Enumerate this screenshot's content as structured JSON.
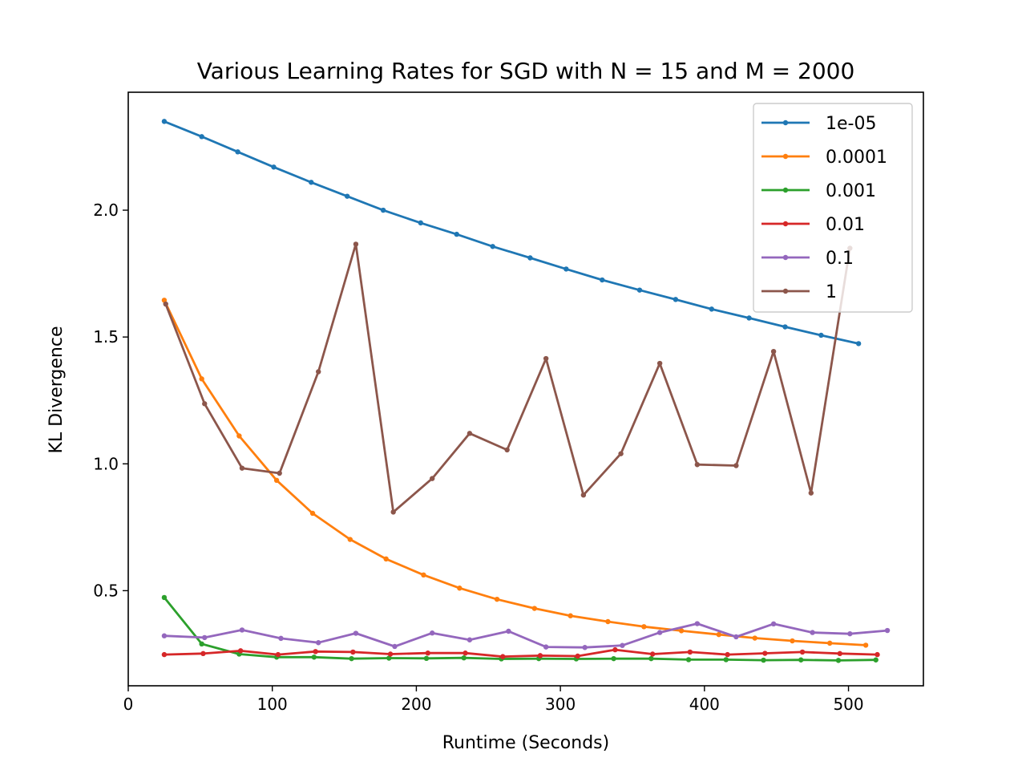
{
  "chart_data": {
    "type": "line",
    "title": "Various Learning Rates for SGD with N = 15 and M = 2000",
    "xlabel": "Runtime (Seconds)",
    "ylabel": "KL Divergence",
    "xlim": [
      0,
      552
    ],
    "ylim": [
      0.125,
      2.465
    ],
    "xticks": [
      0,
      100,
      200,
      300,
      400,
      500
    ],
    "yticks": [
      0.5,
      1.0,
      1.5,
      2.0
    ],
    "xtick_labels": [
      "0",
      "100",
      "200",
      "300",
      "400",
      "500"
    ],
    "ytick_labels": [
      "0.5",
      "1.0",
      "1.5",
      "2.0"
    ],
    "legend_position": "top-right",
    "grid": false,
    "series": [
      {
        "name": "1e-05",
        "color": "#1f77b4",
        "x": [
          25,
          51,
          76,
          101,
          127,
          152,
          177,
          203,
          228,
          253,
          279,
          304,
          329,
          355,
          380,
          405,
          431,
          456,
          481,
          507
        ],
        "y": [
          2.35,
          2.29,
          2.23,
          2.17,
          2.11,
          2.055,
          2.0,
          1.95,
          1.905,
          1.857,
          1.812,
          1.768,
          1.725,
          1.685,
          1.648,
          1.61,
          1.575,
          1.54,
          1.507,
          1.474
        ]
      },
      {
        "name": "0.0001",
        "color": "#ff7f0e",
        "x": [
          25,
          51,
          77,
          103,
          128,
          154,
          179,
          205,
          230,
          256,
          282,
          307,
          333,
          358,
          384,
          410,
          435,
          461,
          487,
          512
        ],
        "y": [
          1.645,
          1.335,
          1.11,
          0.935,
          0.805,
          0.702,
          0.625,
          0.562,
          0.51,
          0.466,
          0.43,
          0.401,
          0.378,
          0.358,
          0.342,
          0.327,
          0.313,
          0.302,
          0.293,
          0.285
        ]
      },
      {
        "name": "0.001",
        "color": "#2ca02c",
        "x": [
          25,
          51,
          77,
          103,
          129,
          155,
          181,
          207,
          233,
          259,
          285,
          311,
          337,
          363,
          389,
          415,
          441,
          467,
          493,
          519
        ],
        "y": [
          0.473,
          0.29,
          0.25,
          0.238,
          0.238,
          0.232,
          0.234,
          0.233,
          0.235,
          0.231,
          0.232,
          0.231,
          0.232,
          0.232,
          0.228,
          0.228,
          0.226,
          0.227,
          0.225,
          0.227
        ]
      },
      {
        "name": "0.01",
        "color": "#d62728",
        "x": [
          25,
          52,
          78,
          104,
          130,
          156,
          182,
          208,
          234,
          260,
          286,
          312,
          338,
          364,
          390,
          416,
          442,
          468,
          494,
          520
        ],
        "y": [
          0.248,
          0.252,
          0.263,
          0.248,
          0.26,
          0.258,
          0.25,
          0.254,
          0.254,
          0.24,
          0.244,
          0.242,
          0.267,
          0.25,
          0.258,
          0.248,
          0.253,
          0.258,
          0.252,
          0.248
        ]
      },
      {
        "name": "0.1",
        "color": "#9467bd",
        "x": [
          25,
          53,
          79,
          106,
          132,
          158,
          185,
          211,
          237,
          264,
          290,
          317,
          343,
          369,
          395,
          422,
          448,
          475,
          501,
          527
        ],
        "y": [
          0.322,
          0.315,
          0.345,
          0.312,
          0.295,
          0.332,
          0.28,
          0.333,
          0.306,
          0.34,
          0.278,
          0.276,
          0.284,
          0.335,
          0.37,
          0.318,
          0.369,
          0.335,
          0.33,
          0.343
        ]
      },
      {
        "name": "1",
        "color": "#8c564b",
        "x": [
          26,
          53,
          79,
          105,
          132,
          158,
          184,
          211,
          237,
          263,
          290,
          316,
          342,
          369,
          395,
          422,
          448,
          474,
          501
        ],
        "y": [
          1.63,
          1.237,
          0.983,
          0.963,
          1.363,
          1.866,
          0.81,
          0.942,
          1.12,
          1.055,
          1.415,
          0.877,
          1.04,
          1.396,
          0.997,
          0.993,
          1.443,
          0.885,
          1.85
        ]
      }
    ]
  }
}
